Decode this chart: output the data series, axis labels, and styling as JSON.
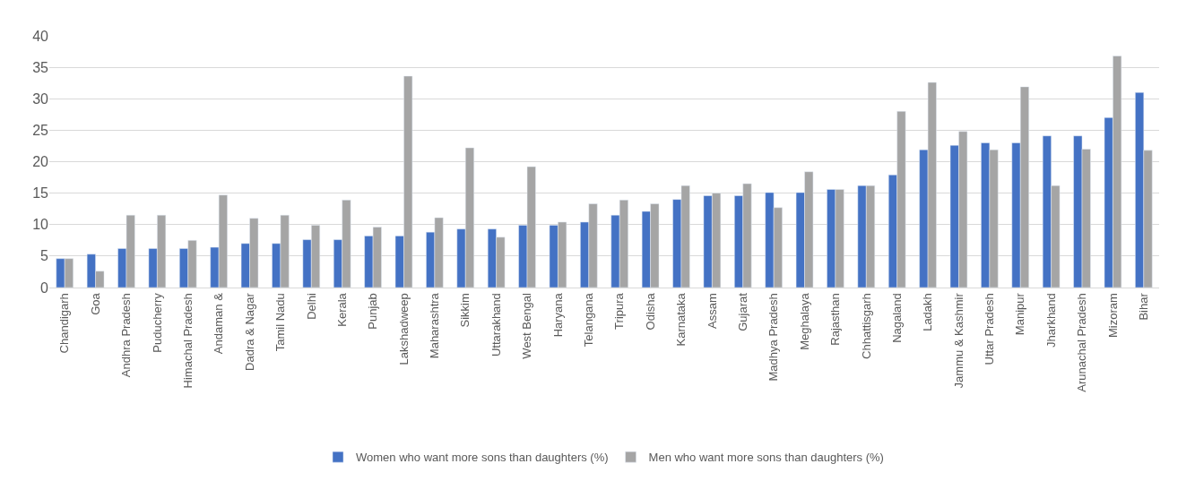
{
  "chart_data": {
    "type": "bar",
    "categories": [
      "Chandigarh",
      "Goa",
      "Andhra Pradesh",
      "Puducherry",
      "Himachal Pradesh",
      "Andaman &",
      "Dadra & Nagar",
      "Tamil Nadu",
      "Delhi",
      "Kerala",
      "Punjab",
      "Lakshadweep",
      "Maharashtra",
      "Sikkim",
      "Uttarakhand",
      "West Bengal",
      "Haryana",
      "Telangana",
      "Tripura",
      "Odisha",
      "Karnataka",
      "Assam",
      "Gujarat",
      "Madhya Pradesh",
      "Meghalaya",
      "Rajasthan",
      "Chhattisgarh",
      "Nagaland",
      "Ladakh",
      "Jammu & Kashmir",
      "Uttar Pradesh",
      "Manipur",
      "Jharkhand",
      "Arunachal Pradesh",
      "Mizoram",
      "Bihar"
    ],
    "series": [
      {
        "name": "Women who want more sons than daughters (%)",
        "color": "#4472c4",
        "values": [
          4.6,
          5.3,
          6.2,
          6.2,
          6.2,
          6.4,
          7.0,
          7.0,
          7.6,
          7.6,
          8.2,
          8.2,
          8.8,
          9.3,
          9.3,
          9.9,
          9.9,
          10.4,
          11.5,
          12.1,
          14.0,
          14.6,
          14.6,
          15.1,
          15.1,
          15.6,
          16.2,
          17.9,
          21.9,
          22.6,
          23.0,
          23.0,
          24.1,
          24.1,
          27.0,
          31.0
        ]
      },
      {
        "name": "Men who want more sons than daughters (%)",
        "color": "#a5a5a5",
        "values": [
          4.6,
          2.6,
          11.5,
          11.5,
          7.5,
          14.7,
          11.0,
          11.5,
          9.9,
          13.9,
          9.6,
          33.6,
          11.1,
          22.2,
          8.0,
          19.2,
          10.4,
          13.3,
          13.9,
          13.3,
          16.2,
          15.0,
          16.5,
          12.7,
          18.4,
          15.6,
          16.2,
          28.0,
          32.6,
          24.8,
          21.9,
          31.9,
          16.2,
          22.0,
          36.8,
          21.8
        ]
      }
    ],
    "ylim": [
      0,
      40
    ],
    "yticks": [
      0,
      5,
      10,
      15,
      20,
      25,
      30,
      35,
      40
    ],
    "grid": "y",
    "legend": "bottom"
  }
}
